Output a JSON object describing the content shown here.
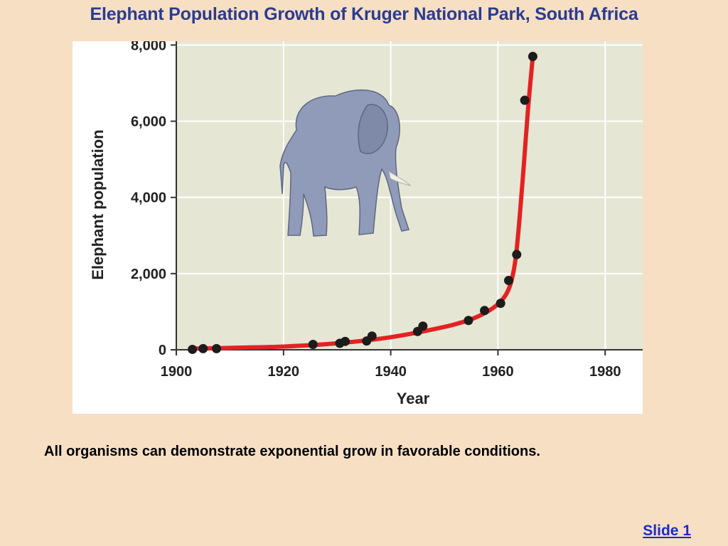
{
  "slide": {
    "title": "Elephant Population Growth of Kruger National Park, South Africa",
    "caption": "All organisms can demonstrate exponential grow in favorable conditions.",
    "link_label": "Slide 1"
  },
  "colors": {
    "background": "#f7dfc4",
    "plot_area": "#e6e6d4",
    "curve": "#e32222",
    "points": "#1c1c1c",
    "title": "#2a3c8f",
    "link": "#1a2bd0"
  },
  "illustration": {
    "icon": "elephant-icon"
  },
  "chart_data": {
    "type": "scatter",
    "title": "",
    "xlabel": "Year",
    "ylabel": "Elephant population",
    "xlim": [
      1900,
      1987
    ],
    "ylim": [
      0,
      8100
    ],
    "x_ticks": [
      1900,
      1920,
      1940,
      1960,
      1980
    ],
    "y_ticks": [
      0,
      2000,
      4000,
      6000,
      8000
    ],
    "y_tick_labels": [
      "0",
      "2,000",
      "4,000",
      "6,000",
      "8,000"
    ],
    "grid": true,
    "points": [
      {
        "x": 1903,
        "y": 10
      },
      {
        "x": 1905,
        "y": 30
      },
      {
        "x": 1907.5,
        "y": 30
      },
      {
        "x": 1925.5,
        "y": 140
      },
      {
        "x": 1930.5,
        "y": 170
      },
      {
        "x": 1931.5,
        "y": 220
      },
      {
        "x": 1935.5,
        "y": 230
      },
      {
        "x": 1936.5,
        "y": 360
      },
      {
        "x": 1945,
        "y": 480
      },
      {
        "x": 1946,
        "y": 620
      },
      {
        "x": 1954.5,
        "y": 770
      },
      {
        "x": 1957.5,
        "y": 1030
      },
      {
        "x": 1960.5,
        "y": 1220
      },
      {
        "x": 1962,
        "y": 1820
      },
      {
        "x": 1963.5,
        "y": 2500
      },
      {
        "x": 1965,
        "y": 6550
      },
      {
        "x": 1966.5,
        "y": 7700
      }
    ],
    "trend_curve": [
      {
        "x": 1903,
        "y": 30
      },
      {
        "x": 1910,
        "y": 50
      },
      {
        "x": 1920,
        "y": 85
      },
      {
        "x": 1930,
        "y": 170
      },
      {
        "x": 1940,
        "y": 330
      },
      {
        "x": 1950,
        "y": 600
      },
      {
        "x": 1955,
        "y": 800
      },
      {
        "x": 1958,
        "y": 1000
      },
      {
        "x": 1960,
        "y": 1200
      },
      {
        "x": 1961.5,
        "y": 1450
      },
      {
        "x": 1962.5,
        "y": 1800
      },
      {
        "x": 1963.3,
        "y": 2400
      },
      {
        "x": 1964,
        "y": 3400
      },
      {
        "x": 1964.8,
        "y": 4800
      },
      {
        "x": 1965.6,
        "y": 6300
      },
      {
        "x": 1966.5,
        "y": 7700
      }
    ]
  }
}
